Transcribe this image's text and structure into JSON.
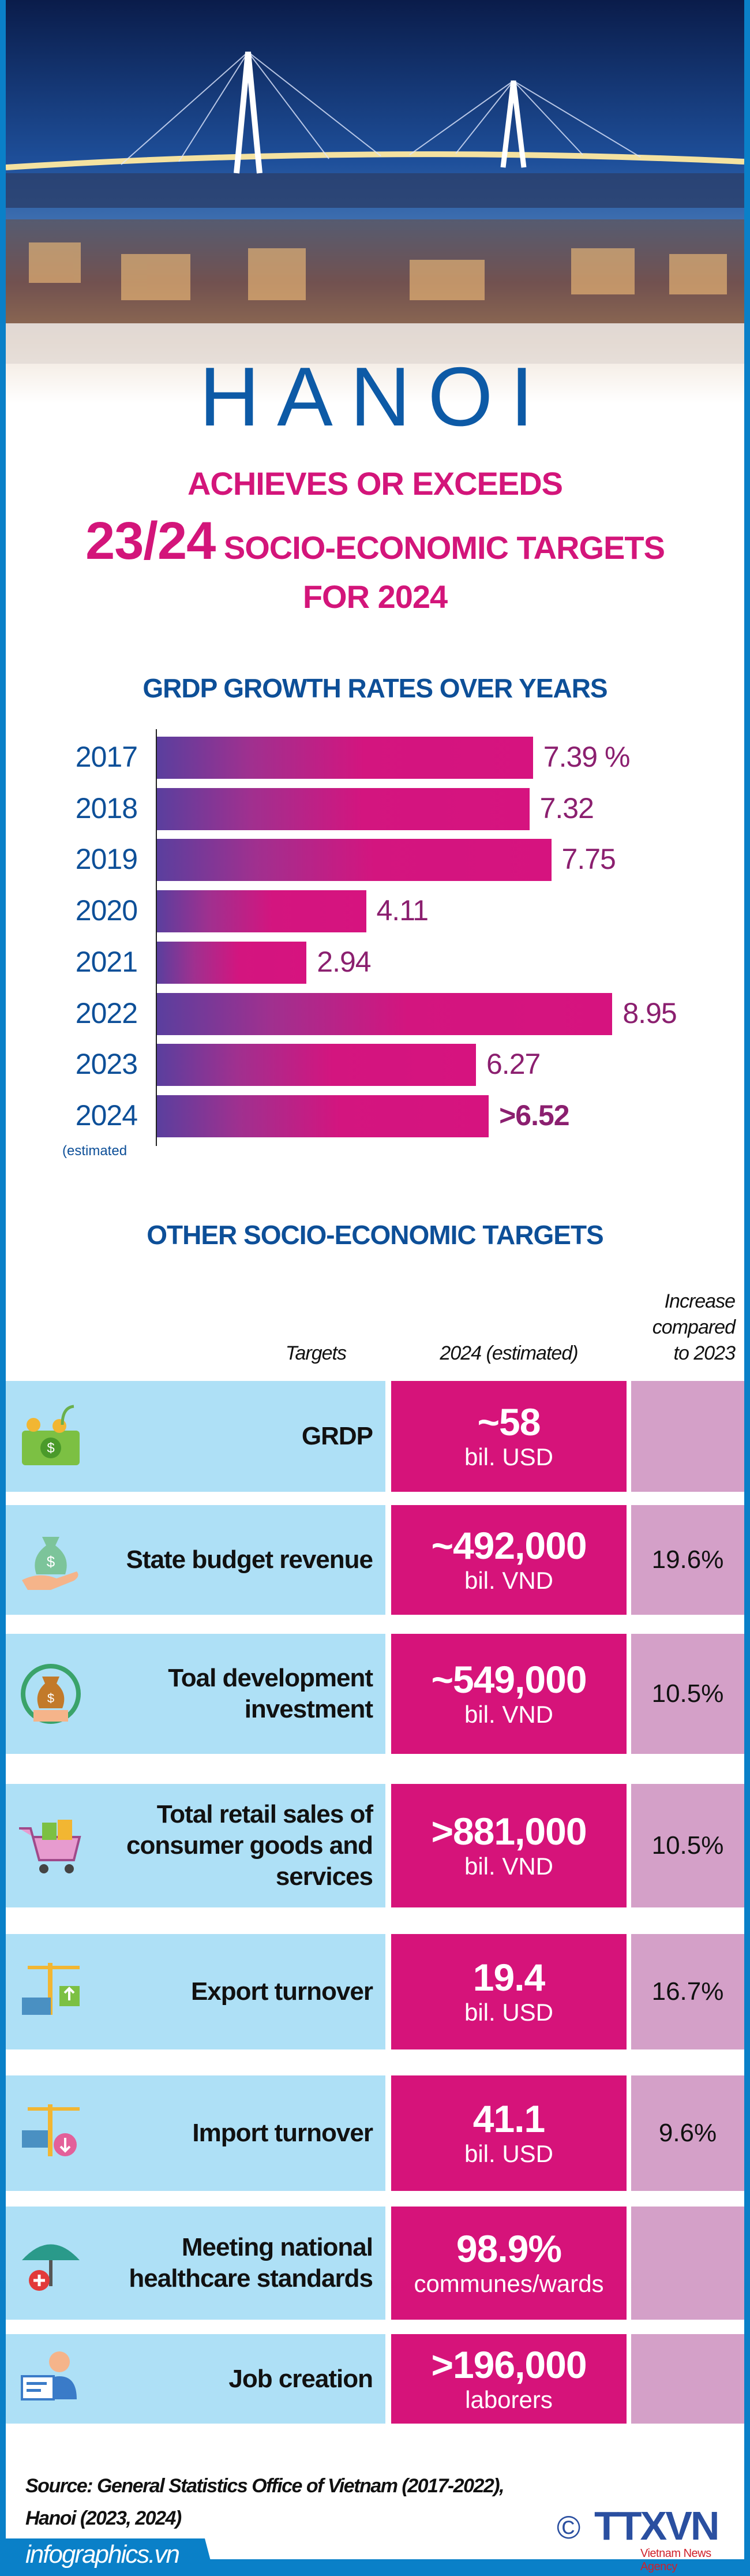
{
  "hero": {
    "city": "HANOI"
  },
  "headline": {
    "line1": "ACHIEVES OR EXCEEDS",
    "fraction": "23/24",
    "line2": "SOCIO-ECONOMIC TARGETS",
    "line3": "FOR 2024"
  },
  "chart_data": {
    "type": "bar",
    "title": "GRDP GROWTH RATES OVER YEARS",
    "orientation": "horizontal",
    "categories": [
      "2017",
      "2018",
      "2019",
      "2020",
      "2021",
      "2022",
      "2023",
      "2024"
    ],
    "category_note": "(estimated",
    "values": [
      7.39,
      7.32,
      7.75,
      4.11,
      2.94,
      8.95,
      6.27,
      6.52
    ],
    "labels": [
      "7.39 %",
      "7.32",
      "7.75",
      "4.11",
      "2.94",
      "8.95",
      "6.27",
      ">6.52"
    ],
    "unit": "%",
    "colors": {
      "bar_start": "#5a3f9e",
      "bar_end": "#d6137f",
      "label": "#8b1f6f",
      "year": "#0d4f98"
    }
  },
  "targets": {
    "title": "OTHER SOCIO-ECONOMIC TARGETS",
    "headers": {
      "target": "Targets",
      "estimate": "2024 (estimated)",
      "increase_l1": "Increase",
      "increase_l2": "compared",
      "increase_l3": "to 2023"
    },
    "rows": [
      {
        "icon": "money-plant-icon",
        "label": "GRDP",
        "value": "~58",
        "unit": "bil. USD",
        "increase": ""
      },
      {
        "icon": "money-bag-hand-icon",
        "label": "State budget revenue",
        "value": "~492,000",
        "unit": "bil. VND",
        "increase": "19.6%"
      },
      {
        "icon": "investment-icon",
        "label": "Toal development investment",
        "value": "~549,000",
        "unit": "bil. VND",
        "increase": "10.5%"
      },
      {
        "icon": "shopping-cart-icon",
        "label": "Total retail sales of consumer goods and services",
        "value": ">881,000",
        "unit": "bil. VND",
        "increase": "10.5%"
      },
      {
        "icon": "export-crane-icon",
        "label": "Export turnover",
        "value": "19.4",
        "unit": "bil. USD",
        "increase": "16.7%"
      },
      {
        "icon": "import-crane-icon",
        "label": "Import turnover",
        "value": "41.1",
        "unit": "bil. USD",
        "increase": "9.6%"
      },
      {
        "icon": "healthcare-umbrella-icon",
        "label": "Meeting national healthcare standards",
        "value": "98.9%",
        "unit": "communes/wards",
        "increase": ""
      },
      {
        "icon": "job-worker-icon",
        "label": "Job creation",
        "value": ">196,000",
        "unit": "laborers",
        "increase": ""
      }
    ],
    "colors": {
      "target_bg": "#aee0f6",
      "value_bg": "#d6137a",
      "increase_bg": "#d4a0c8"
    }
  },
  "footer": {
    "source_l1": "Source: General Statistics Office of Vietnam (2017-2022),",
    "source_l2": "Hanoi (2023, 2024)",
    "site": "infographics.vn",
    "copyright": "©",
    "logo": "TTXVN",
    "logo_sub": "Vietnam News Agency"
  }
}
